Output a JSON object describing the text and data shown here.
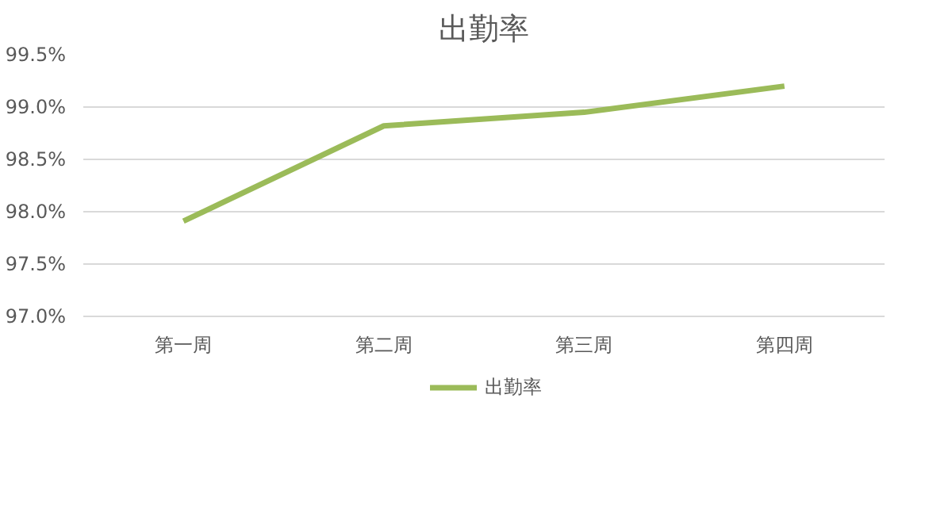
{
  "chart_data": {
    "type": "line",
    "title": "出勤率",
    "categories": [
      "第一周",
      "第二周",
      "第三周",
      "第四周"
    ],
    "series": [
      {
        "name": "出勤率",
        "color": "#9bbb59",
        "values": [
          97.91,
          98.82,
          98.95,
          99.2
        ]
      }
    ],
    "ylim": [
      97.0,
      99.5
    ],
    "yticks": [
      {
        "value": 97.0,
        "label": "97.0%"
      },
      {
        "value": 97.5,
        "label": "97.5%"
      },
      {
        "value": 98.0,
        "label": "98.0%"
      },
      {
        "value": 98.5,
        "label": "98.5%"
      },
      {
        "value": 99.0,
        "label": "99.0%"
      },
      {
        "value": 99.5,
        "label": "99.5%"
      }
    ],
    "grid": "y",
    "legend": "bottom",
    "marker": "none",
    "line_style": "solid"
  }
}
